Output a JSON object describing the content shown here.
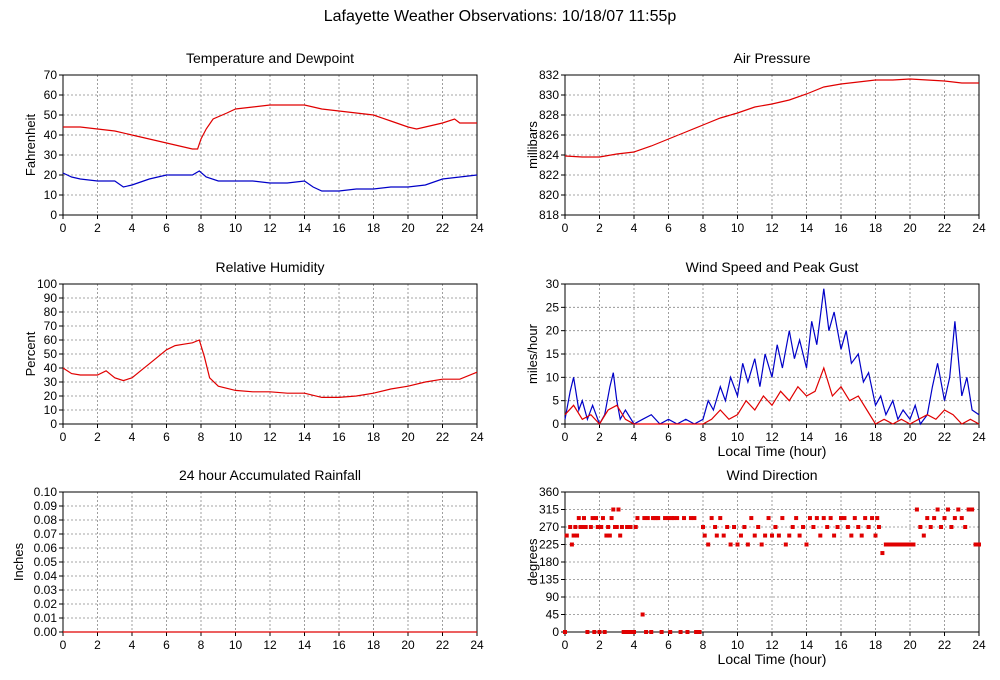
{
  "page_title": "Lafayette Weather Observations: 10/18/07 11:55p",
  "colors": {
    "red": "#e00000",
    "blue": "#0000c8",
    "grid": "#888888"
  },
  "chart_data": [
    {
      "id": "temp",
      "type": "line",
      "title": "Temperature and Dewpoint",
      "xlabel": "",
      "ylabel": "Fahrenheit",
      "xlim": [
        0,
        24
      ],
      "ylim": [
        0,
        70
      ],
      "xticks": [
        0,
        2,
        4,
        6,
        8,
        10,
        12,
        14,
        16,
        18,
        20,
        22,
        24
      ],
      "yticks": [
        0,
        10,
        20,
        30,
        40,
        50,
        60,
        70
      ],
      "grid": true,
      "series": [
        {
          "color": "red",
          "style": "line",
          "x": [
            0,
            1,
            2,
            3,
            4,
            5,
            6,
            7,
            7.5,
            7.8,
            8,
            8.3,
            8.7,
            9.5,
            10,
            11,
            12,
            13,
            14,
            15,
            16,
            17,
            18,
            19,
            20,
            20.5,
            21,
            22,
            22.7,
            23,
            24
          ],
          "y": [
            44,
            44,
            43,
            42,
            40,
            38,
            36,
            34,
            33,
            33,
            38,
            43,
            48,
            51,
            53,
            54,
            55,
            55,
            55,
            53,
            52,
            51,
            50,
            47,
            44,
            43,
            44,
            46,
            48,
            46,
            46
          ]
        },
        {
          "color": "blue",
          "style": "line",
          "x": [
            0,
            0.5,
            1,
            2,
            3,
            3.5,
            4,
            5,
            6,
            7,
            7.5,
            7.9,
            8.3,
            9,
            10,
            11,
            12,
            13,
            14,
            14.5,
            15,
            16,
            17,
            18,
            19,
            20,
            21,
            22,
            23,
            24
          ],
          "y": [
            21,
            19,
            18,
            17,
            17,
            14,
            15,
            18,
            20,
            20,
            20,
            22,
            19,
            17,
            17,
            17,
            16,
            16,
            17,
            14,
            12,
            12,
            13,
            13,
            14,
            14,
            15,
            18,
            19,
            20
          ]
        }
      ]
    },
    {
      "id": "pressure",
      "type": "line",
      "title": "Air Pressure",
      "xlabel": "",
      "ylabel": "millibars",
      "xlim": [
        0,
        24
      ],
      "ylim": [
        818,
        832
      ],
      "xticks": [
        0,
        2,
        4,
        6,
        8,
        10,
        12,
        14,
        16,
        18,
        20,
        22,
        24
      ],
      "yticks": [
        818,
        820,
        822,
        824,
        826,
        828,
        830,
        832
      ],
      "grid": true,
      "series": [
        {
          "color": "red",
          "style": "line",
          "x": [
            0,
            1,
            2,
            3,
            4,
            5,
            6,
            7,
            8,
            9,
            10,
            11,
            12,
            13,
            14,
            15,
            16,
            17,
            18,
            19,
            20,
            21,
            22,
            23,
            24
          ],
          "y": [
            823.9,
            823.8,
            823.8,
            824.1,
            824.3,
            824.9,
            825.6,
            826.3,
            827,
            827.7,
            828.2,
            828.8,
            829.1,
            829.5,
            830.1,
            830.8,
            831.1,
            831.3,
            831.5,
            831.5,
            831.6,
            831.5,
            831.4,
            831.2,
            831.2
          ]
        }
      ]
    },
    {
      "id": "humidity",
      "type": "line",
      "title": "Relative Humidity",
      "xlabel": "",
      "ylabel": "Percent",
      "xlim": [
        0,
        24
      ],
      "ylim": [
        0,
        100
      ],
      "xticks": [
        0,
        2,
        4,
        6,
        8,
        10,
        12,
        14,
        16,
        18,
        20,
        22,
        24
      ],
      "yticks": [
        0,
        10,
        20,
        30,
        40,
        50,
        60,
        70,
        80,
        90,
        100
      ],
      "grid": true,
      "series": [
        {
          "color": "red",
          "style": "line",
          "x": [
            0,
            0.5,
            1,
            2,
            2.5,
            3,
            3.5,
            4,
            4.5,
            5,
            5.5,
            6,
            6.5,
            7,
            7.5,
            7.9,
            8.2,
            8.5,
            9,
            10,
            11,
            12,
            13,
            14,
            15,
            16,
            17,
            18,
            19,
            20,
            21,
            22,
            23,
            24
          ],
          "y": [
            40,
            36,
            35,
            35,
            38,
            33,
            31,
            33,
            38,
            43,
            48,
            53,
            56,
            57,
            58,
            60,
            48,
            33,
            27,
            24,
            23,
            23,
            22,
            22,
            19,
            19,
            20,
            22,
            25,
            27,
            30,
            32,
            32,
            37
          ]
        }
      ]
    },
    {
      "id": "wind",
      "type": "line",
      "title": "Wind Speed and Peak Gust",
      "xlabel": "Local Time (hour)",
      "ylabel": "miles/hour",
      "xlim": [
        0,
        24
      ],
      "ylim": [
        0,
        30
      ],
      "xticks": [
        0,
        2,
        4,
        6,
        8,
        10,
        12,
        14,
        16,
        18,
        20,
        22,
        24
      ],
      "yticks": [
        0,
        5,
        10,
        15,
        20,
        25,
        30
      ],
      "grid": true,
      "series": [
        {
          "color": "blue",
          "style": "line",
          "x": [
            0,
            0.3,
            0.5,
            0.8,
            1,
            1.3,
            1.6,
            2,
            2.3,
            2.6,
            2.8,
            3,
            3.2,
            3.5,
            4,
            4.5,
            5,
            5.5,
            6,
            6.5,
            7,
            7.5,
            8,
            8.3,
            8.6,
            9,
            9.3,
            9.6,
            10,
            10.3,
            10.6,
            11,
            11.3,
            11.6,
            12,
            12.3,
            12.6,
            13,
            13.3,
            13.6,
            14,
            14.3,
            14.6,
            15,
            15.3,
            15.6,
            16,
            16.3,
            16.6,
            17,
            17.3,
            17.6,
            18,
            18.3,
            18.6,
            19,
            19.3,
            19.6,
            20,
            20.3,
            20.6,
            21,
            21.3,
            21.6,
            22,
            22.3,
            22.6,
            23,
            23.3,
            23.6,
            24
          ],
          "y": [
            1,
            7,
            10,
            3,
            5,
            1,
            4,
            0,
            2,
            8,
            11,
            5,
            1,
            3,
            0,
            1,
            2,
            0,
            1,
            0,
            1,
            0,
            1,
            5,
            3,
            8,
            5,
            10,
            6,
            13,
            9,
            14,
            8,
            15,
            10,
            17,
            12,
            20,
            14,
            18,
            12,
            22,
            17,
            29,
            20,
            24,
            16,
            20,
            13,
            15,
            9,
            11,
            4,
            6,
            2,
            5,
            1,
            3,
            1,
            4,
            0,
            2,
            8,
            13,
            5,
            10,
            22,
            6,
            10,
            3,
            2
          ]
        },
        {
          "color": "red",
          "style": "line",
          "x": [
            0,
            0.5,
            1,
            1.5,
            2,
            2.5,
            3,
            3.5,
            4,
            5,
            6,
            7,
            8,
            8.5,
            9,
            9.5,
            10,
            10.5,
            11,
            11.5,
            12,
            12.5,
            13,
            13.5,
            14,
            14.5,
            15,
            15.5,
            16,
            16.5,
            17,
            17.5,
            18,
            18.5,
            19,
            19.5,
            20,
            20.5,
            21,
            21.5,
            22,
            22.5,
            23,
            23.5,
            24
          ],
          "y": [
            2,
            4,
            1,
            2,
            0,
            3,
            4,
            1,
            0,
            0,
            0,
            0,
            0,
            1,
            3,
            1,
            2,
            5,
            3,
            6,
            4,
            7,
            5,
            8,
            6,
            7,
            12,
            6,
            8,
            5,
            6,
            3,
            0,
            1,
            0,
            1,
            0,
            1,
            2,
            1,
            3,
            2,
            0,
            1,
            0
          ]
        }
      ]
    },
    {
      "id": "rain",
      "type": "line",
      "title": "24 hour Accumulated Rainfall",
      "xlabel": "",
      "ylabel": "Inches",
      "xlim": [
        0,
        24
      ],
      "ylim": [
        0,
        0.1
      ],
      "xticks": [
        0,
        2,
        4,
        6,
        8,
        10,
        12,
        14,
        16,
        18,
        20,
        22,
        24
      ],
      "yticks": [
        "0.00",
        "0.01",
        "0.02",
        "0.03",
        "0.04",
        "0.05",
        "0.06",
        "0.07",
        "0.08",
        "0.09",
        "0.10"
      ],
      "grid": true,
      "series": [
        {
          "color": "red",
          "style": "line",
          "x": [
            0,
            24
          ],
          "y": [
            0,
            0
          ]
        }
      ]
    },
    {
      "id": "direction",
      "type": "scatter",
      "title": "Wind Direction",
      "xlabel": "Local Time (hour)",
      "ylabel": "degrees",
      "xlim": [
        0,
        24
      ],
      "ylim": [
        0,
        360
      ],
      "xticks": [
        0,
        2,
        4,
        6,
        8,
        10,
        12,
        14,
        16,
        18,
        20,
        22,
        24
      ],
      "yticks": [
        0,
        45,
        90,
        135,
        180,
        225,
        270,
        315,
        360
      ],
      "grid": true,
      "series": [
        {
          "color": "red",
          "style": "dots",
          "x": [
            0,
            0.1,
            0.3,
            0.4,
            0.5,
            0.6,
            0.7,
            0.8,
            0.9,
            1,
            1.1,
            1.2,
            1.3,
            1.5,
            1.6,
            1.7,
            1.8,
            1.9,
            2,
            2.1,
            2.2,
            2.3,
            2.4,
            2.5,
            2.6,
            2.7,
            2.8,
            2.9,
            3,
            3.1,
            3.2,
            3.3,
            3.4,
            3.5,
            3.6,
            3.7,
            3.8,
            3.9,
            4,
            4.1,
            4.2,
            4.5,
            4.6,
            4.7,
            4.8,
            5,
            5.1,
            5.2,
            5.3,
            5.4,
            5.6,
            5.8,
            6,
            6.1,
            6.2,
            6.3,
            6.5,
            6.7,
            6.9,
            7.1,
            7.3,
            7.5,
            7.6,
            7.8,
            8,
            8.1,
            8.3,
            8.5,
            8.7,
            8.8,
            9,
            9.2,
            9.4,
            9.6,
            9.8,
            10,
            10.2,
            10.4,
            10.6,
            10.8,
            11,
            11.2,
            11.4,
            11.6,
            11.8,
            12,
            12.2,
            12.4,
            12.6,
            12.8,
            13,
            13.2,
            13.4,
            13.6,
            13.8,
            14,
            14.2,
            14.4,
            14.6,
            14.8,
            15,
            15.2,
            15.4,
            15.6,
            15.8,
            16,
            16.2,
            16.4,
            16.6,
            16.8,
            17,
            17.2,
            17.4,
            17.6,
            17.8,
            18,
            18.1,
            18.2,
            18.4,
            18.6,
            18.8,
            19,
            19.2,
            19.4,
            19.6,
            19.8,
            20,
            20.2,
            20.4,
            20.6,
            20.8,
            21,
            21.2,
            21.4,
            21.6,
            21.8,
            22,
            22.2,
            22.4,
            22.6,
            22.8,
            23,
            23.2,
            23.4,
            23.6,
            23.8,
            24
          ],
          "y": [
            0,
            248,
            270,
            225,
            248,
            270,
            248,
            293,
            270,
            270,
            293,
            270,
            0,
            270,
            293,
            0,
            293,
            270,
            0,
            270,
            293,
            0,
            248,
            270,
            248,
            293,
            315,
            270,
            270,
            315,
            248,
            270,
            0,
            0,
            270,
            0,
            270,
            0,
            0,
            270,
            293,
            45,
            293,
            0,
            293,
            0,
            293,
            293,
            293,
            293,
            0,
            293,
            293,
            0,
            293,
            293,
            293,
            0,
            293,
            0,
            293,
            293,
            0,
            0,
            270,
            248,
            225,
            293,
            270,
            248,
            293,
            248,
            270,
            225,
            270,
            225,
            248,
            270,
            225,
            293,
            248,
            270,
            225,
            248,
            293,
            248,
            270,
            248,
            293,
            225,
            248,
            270,
            293,
            248,
            270,
            225,
            293,
            270,
            293,
            248,
            293,
            270,
            293,
            248,
            270,
            293,
            293,
            270,
            248,
            293,
            270,
            248,
            293,
            270,
            293,
            248,
            293,
            270,
            203,
            225,
            225,
            225,
            225,
            225,
            225,
            225,
            225,
            225,
            315,
            270,
            248,
            293,
            270,
            293,
            315,
            270,
            293,
            315,
            270,
            293,
            315,
            293,
            270,
            315,
            315,
            225,
            225
          ]
        }
      ]
    }
  ]
}
